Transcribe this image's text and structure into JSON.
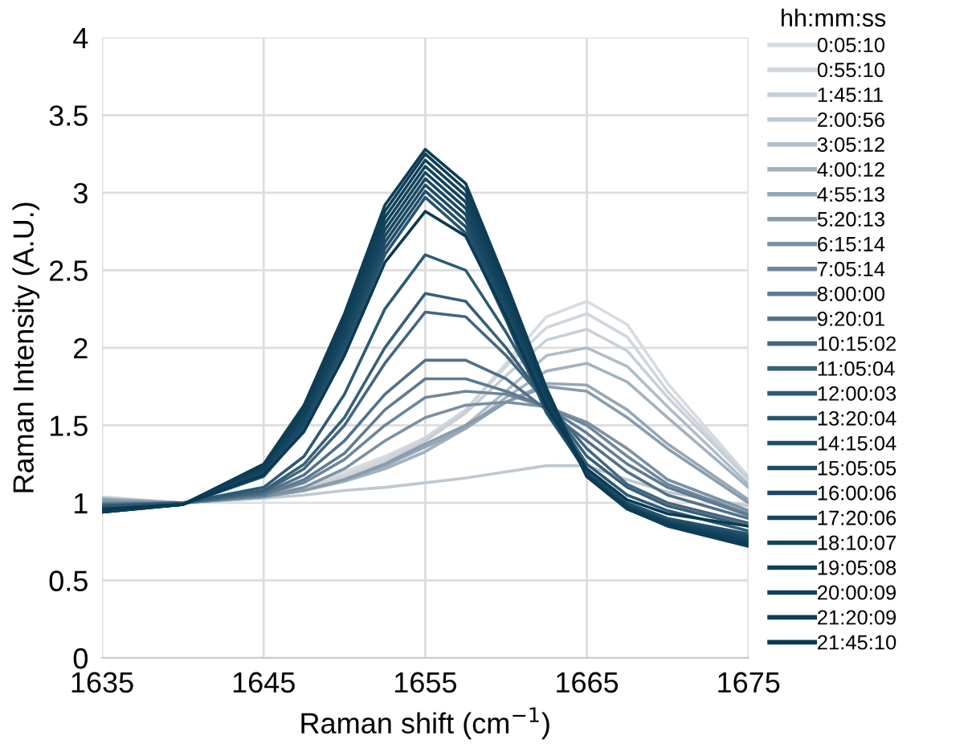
{
  "chart_data": {
    "type": "line",
    "x": [
      1635,
      1640,
      1645,
      1647.5,
      1650,
      1652.5,
      1655,
      1657.5,
      1660,
      1662.5,
      1665,
      1667.5,
      1670,
      1675
    ],
    "xlabel": "Raman shift (cm$^{−1}$)",
    "ylabel": "Raman Intensity (A.U.)",
    "legend_title": "hh:mm:ss",
    "xlim": [
      1635,
      1675
    ],
    "xticks": [
      1635,
      1645,
      1655,
      1665,
      1675
    ],
    "ylim": [
      0,
      4
    ],
    "yticks": [
      0,
      {
        "value": 0.5,
        "label": "0.5"
      },
      1,
      {
        "value": 1.5,
        "label": "1.5"
      },
      2,
      {
        "value": 2.5,
        "label": "2.5"
      },
      3,
      {
        "value": 3.5,
        "label": "3.5"
      },
      4
    ],
    "grid": true,
    "legend": "right",
    "marker": "none",
    "line_style": "solid",
    "series": [
      {
        "name": "0:05:10",
        "color": "#d6dbe0",
        "values": [
          1.04,
          1.0,
          1.05,
          1.1,
          1.2,
          1.3,
          1.42,
          1.6,
          1.9,
          2.2,
          2.3,
          2.15,
          1.77,
          1.17
        ]
      },
      {
        "name": "0:55:10",
        "color": "#cfd5db",
        "values": [
          1.03,
          1.0,
          1.05,
          1.1,
          1.18,
          1.28,
          1.42,
          1.6,
          1.88,
          2.13,
          2.22,
          2.07,
          1.72,
          1.16
        ]
      },
      {
        "name": "1:45:11",
        "color": "#c7cfd6",
        "values": [
          1.03,
          1.0,
          1.05,
          1.09,
          1.16,
          1.26,
          1.4,
          1.58,
          1.82,
          2.05,
          2.12,
          1.98,
          1.68,
          1.15
        ]
      },
      {
        "name": "2:00:56",
        "color": "#bfc8d0",
        "values": [
          1.0,
          1.0,
          1.03,
          1.05,
          1.08,
          1.1,
          1.13,
          1.16,
          1.2,
          1.24,
          1.24,
          1.15,
          1.07,
          0.98
        ]
      },
      {
        "name": "3:05:12",
        "color": "#b0bcc6",
        "values": [
          1.03,
          1.0,
          1.04,
          1.08,
          1.14,
          1.22,
          1.33,
          1.5,
          1.72,
          1.95,
          2.0,
          1.88,
          1.62,
          1.12
        ]
      },
      {
        "name": "4:00:12",
        "color": "#a3b2be",
        "values": [
          1.02,
          1.0,
          1.04,
          1.08,
          1.14,
          1.22,
          1.33,
          1.48,
          1.68,
          1.85,
          1.9,
          1.78,
          1.55,
          1.1
        ]
      },
      {
        "name": "4:55:13",
        "color": "#95a7b5",
        "values": [
          1.02,
          1.0,
          1.04,
          1.08,
          1.15,
          1.24,
          1.36,
          1.48,
          1.65,
          1.77,
          1.76,
          1.6,
          1.38,
          1.02
        ]
      },
      {
        "name": "5:20:13",
        "color": "#889cac",
        "values": [
          1.02,
          1.0,
          1.04,
          1.08,
          1.15,
          1.25,
          1.38,
          1.5,
          1.65,
          1.75,
          1.72,
          1.55,
          1.35,
          1.0
        ]
      },
      {
        "name": "6:15:14",
        "color": "#7a91a3",
        "values": [
          1.0,
          1.0,
          1.04,
          1.1,
          1.22,
          1.4,
          1.55,
          1.63,
          1.65,
          1.62,
          1.52,
          1.35,
          1.15,
          0.95
        ]
      },
      {
        "name": "7:05:14",
        "color": "#6d869b",
        "values": [
          1.0,
          1.0,
          1.05,
          1.13,
          1.28,
          1.5,
          1.68,
          1.72,
          1.7,
          1.62,
          1.5,
          1.3,
          1.12,
          0.93
        ]
      },
      {
        "name": "8:00:00",
        "color": "#5f7b92",
        "values": [
          0.99,
          1.0,
          1.05,
          1.15,
          1.32,
          1.6,
          1.8,
          1.8,
          1.72,
          1.62,
          1.45,
          1.25,
          1.1,
          0.92
        ]
      },
      {
        "name": "9:20:01",
        "color": "#527089",
        "values": [
          0.99,
          1.0,
          1.06,
          1.18,
          1.4,
          1.7,
          1.92,
          1.92,
          1.8,
          1.6,
          1.4,
          1.2,
          1.05,
          0.9
        ]
      },
      {
        "name": "10:15:02",
        "color": "#44667f",
        "values": [
          0.98,
          1.0,
          1.07,
          1.22,
          1.5,
          1.9,
          2.23,
          2.2,
          1.95,
          1.65,
          1.35,
          1.12,
          1.0,
          0.87
        ]
      },
      {
        "name": "11:05:04",
        "color": "#376077",
        "values": [
          0.98,
          1.0,
          1.08,
          1.25,
          1.55,
          2.0,
          2.35,
          2.3,
          2.0,
          1.65,
          1.3,
          1.1,
          0.98,
          0.85
        ]
      },
      {
        "name": "12:00:03",
        "color": "#2d5a73",
        "values": [
          0.98,
          1.0,
          1.1,
          1.3,
          1.7,
          2.25,
          2.6,
          2.5,
          2.1,
          1.65,
          1.25,
          1.05,
          0.95,
          0.82
        ]
      },
      {
        "name": "13:20:04",
        "color": "#27546f",
        "values": [
          0.96,
          0.99,
          1.17,
          1.47,
          1.98,
          2.6,
          2.97,
          2.74,
          2.18,
          1.58,
          1.2,
          1.0,
          0.9,
          0.8
        ]
      },
      {
        "name": "14:15:04",
        "color": "#214f6a",
        "values": [
          0.96,
          0.99,
          1.18,
          1.49,
          2.01,
          2.64,
          3.01,
          2.78,
          2.21,
          1.6,
          1.19,
          0.99,
          0.89,
          0.79
        ]
      },
      {
        "name": "15:05:05",
        "color": "#1c4b66",
        "values": [
          0.95,
          0.99,
          1.19,
          1.51,
          2.04,
          2.68,
          3.05,
          2.82,
          2.24,
          1.62,
          1.19,
          0.99,
          0.88,
          0.78
        ]
      },
      {
        "name": "16:00:06",
        "color": "#184862",
        "values": [
          0.95,
          0.99,
          1.2,
          1.53,
          2.07,
          2.72,
          3.09,
          2.86,
          2.27,
          1.64,
          1.19,
          0.98,
          0.88,
          0.77
        ]
      },
      {
        "name": "17:20:06",
        "color": "#15455f",
        "values": [
          0.95,
          0.99,
          1.21,
          1.55,
          2.1,
          2.76,
          3.13,
          2.9,
          2.3,
          1.66,
          1.18,
          0.98,
          0.87,
          0.76
        ]
      },
      {
        "name": "18:10:07",
        "color": "#13435c",
        "values": [
          0.95,
          0.99,
          1.22,
          1.57,
          2.13,
          2.8,
          3.17,
          2.94,
          2.33,
          1.68,
          1.18,
          0.97,
          0.87,
          0.75
        ]
      },
      {
        "name": "19:05:08",
        "color": "#11415a",
        "values": [
          0.94,
          0.99,
          1.23,
          1.59,
          2.16,
          2.84,
          3.21,
          2.98,
          2.36,
          1.7,
          1.17,
          0.97,
          0.86,
          0.74
        ]
      },
      {
        "name": "20:00:09",
        "color": "#0f3f58",
        "values": [
          0.94,
          0.99,
          1.24,
          1.61,
          2.19,
          2.88,
          3.25,
          3.02,
          2.39,
          1.72,
          1.17,
          0.96,
          0.86,
          0.73
        ]
      },
      {
        "name": "21:20:09",
        "color": "#0d3d56",
        "values": [
          0.94,
          0.99,
          1.25,
          1.63,
          2.22,
          2.92,
          3.28,
          3.06,
          2.42,
          1.74,
          1.17,
          0.96,
          0.85,
          0.72
        ]
      },
      {
        "name": "21:45:10",
        "color": "#0a3a52",
        "values": [
          0.96,
          0.99,
          1.18,
          1.46,
          1.95,
          2.55,
          2.88,
          2.72,
          2.2,
          1.62,
          1.22,
          1.02,
          0.93,
          0.85
        ]
      }
    ]
  }
}
